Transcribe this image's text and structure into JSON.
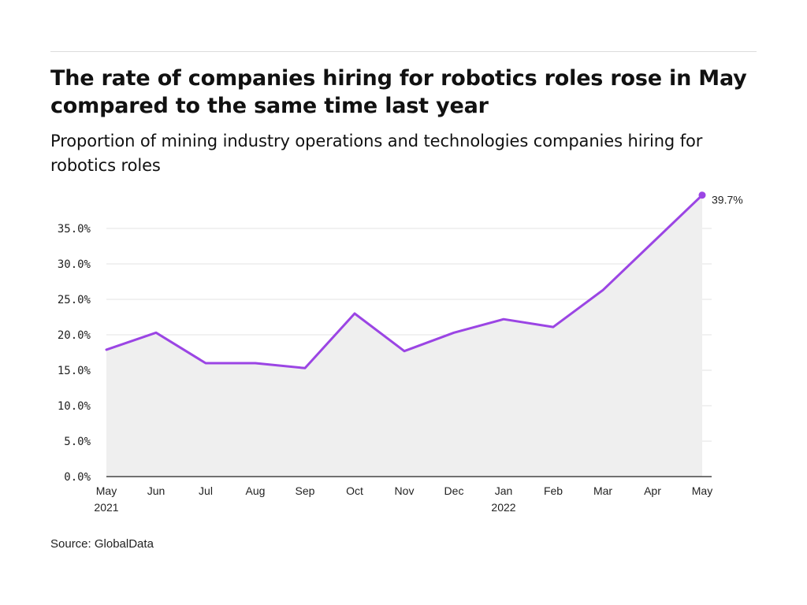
{
  "header": {
    "title": "The rate of companies hiring for robotics roles rose in May compared to the same time last year",
    "subtitle": "Proportion of mining industry operations and technologies companies hiring for robotics roles"
  },
  "footer": {
    "source": "Source: GlobalData"
  },
  "colors": {
    "line": "#9b45e4",
    "area": "#efefef",
    "grid": "#e3e3e3",
    "axis": "#222222"
  },
  "chart_data": {
    "type": "area",
    "title": "The rate of companies hiring for robotics roles rose in May compared to the same time last year",
    "subtitle": "Proportion of mining industry operations and technologies companies hiring for robotics roles",
    "xlabel": "",
    "ylabel": "",
    "x": [
      "2021-05",
      "2021-06",
      "2021-07",
      "2021-08",
      "2021-09",
      "2021-10",
      "2021-11",
      "2021-12",
      "2022-01",
      "2022-02",
      "2022-03",
      "2022-04",
      "2022-05"
    ],
    "x_tick_labels": [
      {
        "label": "May",
        "year": "2021"
      },
      {
        "label": "Jun",
        "year": ""
      },
      {
        "label": "Jul",
        "year": ""
      },
      {
        "label": "Aug",
        "year": ""
      },
      {
        "label": "Sep",
        "year": ""
      },
      {
        "label": "Oct",
        "year": ""
      },
      {
        "label": "Nov",
        "year": ""
      },
      {
        "label": "Dec",
        "year": ""
      },
      {
        "label": "Jan",
        "year": "2022"
      },
      {
        "label": "Feb",
        "year": ""
      },
      {
        "label": "Mar",
        "year": ""
      },
      {
        "label": "Apr",
        "year": ""
      },
      {
        "label": "May",
        "year": ""
      }
    ],
    "series": [
      {
        "values": [
          17.9,
          20.3,
          16.0,
          16.0,
          15.3,
          23.0,
          17.7,
          20.3,
          22.2,
          21.1,
          26.3,
          33.0,
          39.7
        ]
      }
    ],
    "end_label": "39.7%",
    "ylim": [
      0,
      40
    ],
    "y_ticks": [
      0,
      5,
      10,
      15,
      20,
      25,
      30,
      35
    ],
    "y_tick_labels": [
      "0.0%",
      "5.0%",
      "10.0%",
      "15.0%",
      "20.0%",
      "25.0%",
      "30.0%",
      "35.0%"
    ],
    "grid": true,
    "legend": "none",
    "source": "Source: GlobalData"
  }
}
